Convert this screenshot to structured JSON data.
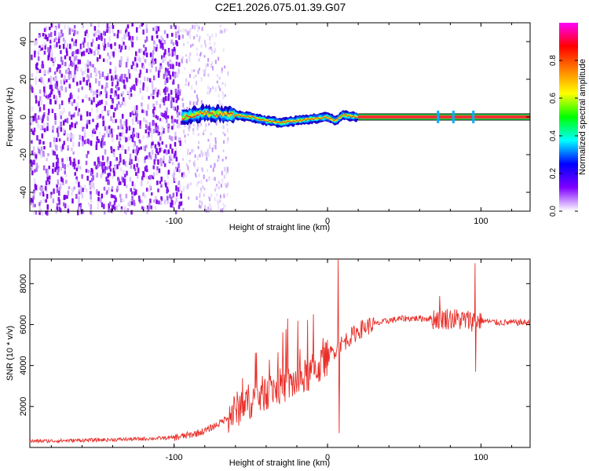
{
  "page_title": "C2E1.2026.075.01.39.G07",
  "chart_data": [
    {
      "type": "heatmap",
      "title": "C2E1.2026.075.01.39.G07",
      "xlabel": "Height of straight line (km)",
      "ylabel": "Frequency (Hz)",
      "xlim": [
        -194,
        132
      ],
      "ylim": [
        -50,
        50
      ],
      "xticks": [
        -100,
        0,
        100
      ],
      "xtick_labels": [
        "-100",
        "0",
        "100"
      ],
      "yticks": [
        -40,
        -20,
        0,
        20,
        40
      ],
      "ytick_labels": [
        "-40",
        "-20",
        "0",
        "20",
        "40"
      ],
      "colorbar": {
        "label": "Normalized spectral amplitude",
        "range": [
          0,
          1
        ],
        "ticks": [
          0.0,
          0.2,
          0.4,
          0.6,
          0.8
        ],
        "tick_labels": [
          "0.0",
          "0.2",
          "0.4",
          "0.6",
          "0.8"
        ],
        "colormap": [
          "#ffffff",
          "#8000ff",
          "#0000ff",
          "#00ffff",
          "#00ff00",
          "#ffff00",
          "#ff8000",
          "#ff0000",
          "#ff00ff"
        ]
      },
      "features": {
        "noise_region_x": [
          -194,
          -95
        ],
        "sparse_noise_region_x": [
          -95,
          -65
        ],
        "signal_onset_x": -95,
        "signal_line_y": 0,
        "signal_wander": [
          [
            -95,
            0
          ],
          [
            -80,
            2
          ],
          [
            -60,
            1
          ],
          [
            -50,
            0
          ],
          [
            -40,
            -2
          ],
          [
            -30,
            -3
          ],
          [
            -20,
            -2
          ],
          [
            -10,
            -1
          ],
          [
            0,
            0
          ],
          [
            5,
            -2
          ],
          [
            10,
            1
          ],
          [
            20,
            0
          ],
          [
            132,
            0
          ]
        ],
        "spikes_x": [
          72,
          82,
          95
        ]
      }
    },
    {
      "type": "line",
      "xlabel": "Height of straight line (km)",
      "ylabel": "SNR (10 * v/v)",
      "xlim": [
        -194,
        132
      ],
      "ylim": [
        0,
        9200
      ],
      "xticks": [
        -100,
        0,
        100
      ],
      "xtick_labels": [
        "-100",
        "0",
        "100"
      ],
      "yticks": [
        2000,
        4000,
        6000,
        8000
      ],
      "ytick_labels": [
        "2000",
        "4000",
        "6000",
        "8000"
      ],
      "series": [
        {
          "name": "SNR",
          "color": "#e8302a",
          "x": [
            -194,
            -180,
            -160,
            -140,
            -120,
            -100,
            -90,
            -80,
            -75,
            -70,
            -65,
            -60,
            -55,
            -50,
            -45,
            -40,
            -35,
            -30,
            -25,
            -20,
            -15,
            -10,
            -5,
            0,
            5,
            10,
            15,
            20,
            25,
            30,
            40,
            50,
            60,
            70,
            80,
            90,
            100,
            110,
            120,
            132
          ],
          "y": [
            300,
            320,
            350,
            380,
            420,
            480,
            600,
            800,
            1000,
            1200,
            1500,
            1800,
            2100,
            2300,
            2500,
            2700,
            2900,
            3000,
            3100,
            3200,
            3400,
            3700,
            4000,
            4400,
            4800,
            5100,
            5400,
            5700,
            5900,
            6000,
            6200,
            6300,
            6300,
            6300,
            6300,
            6200,
            6200,
            6100,
            6100,
            6100
          ],
          "annotated_peaks": [
            {
              "x": -26,
              "y": 6300
            },
            {
              "x": 7,
              "y": 9200
            },
            {
              "x": 7.5,
              "y": 700
            },
            {
              "x": 73,
              "y": 7400
            },
            {
              "x": 96,
              "y": 9000
            },
            {
              "x": 96.5,
              "y": 3700
            }
          ]
        }
      ]
    }
  ]
}
